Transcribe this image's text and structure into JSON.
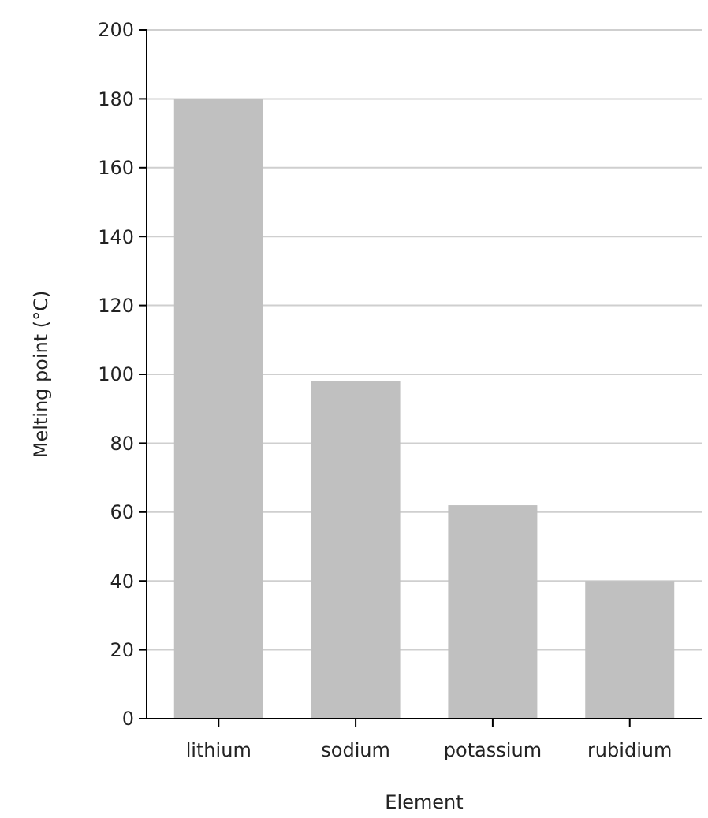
{
  "chart_data": {
    "type": "bar",
    "xlabel": "Element",
    "ylabel": "Melting point (°C)",
    "categories": [
      "lithium",
      "sodium",
      "potassium",
      "rubidium"
    ],
    "values": [
      180,
      98,
      62,
      40
    ],
    "color": "#c0c0c0",
    "ylim": [
      0,
      200
    ],
    "yticks": [
      0,
      20,
      40,
      60,
      80,
      100,
      120,
      140,
      160,
      180,
      200
    ],
    "grid": "y"
  }
}
